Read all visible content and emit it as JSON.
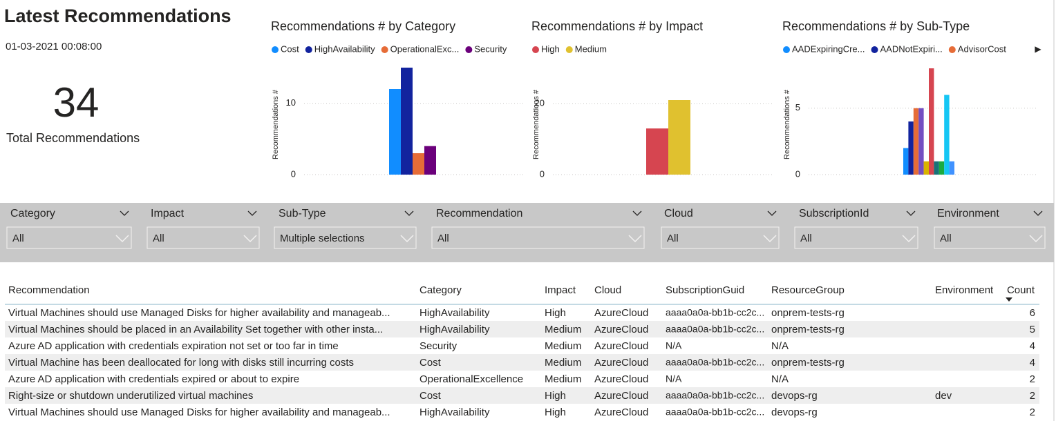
{
  "header": {
    "title": "Latest Recommendations",
    "date": "01-03-2021 00:08:00"
  },
  "card": {
    "value": 34,
    "label": "Total Recommendations"
  },
  "chart_data": [
    {
      "type": "bar",
      "title": "Recommendations # by Category",
      "y_label": "Recommendations #",
      "categories": [
        null
      ],
      "ylim": [
        0,
        15
      ],
      "yticks": [
        0,
        10
      ],
      "grid": true,
      "series": [
        {
          "name": "Cost",
          "color": "#118dff",
          "values": [
            12
          ]
        },
        {
          "name": "HighAvailability",
          "color": "#12239e",
          "values": [
            15
          ]
        },
        {
          "name": "OperationalExc...",
          "color": "#e66c37",
          "values": [
            3
          ]
        },
        {
          "name": "Security",
          "color": "#6b007b",
          "values": [
            4
          ]
        }
      ]
    },
    {
      "type": "bar",
      "title": "Recommendations # by Impact",
      "y_label": "Recommendations #",
      "categories": [
        null
      ],
      "ylim": [
        0,
        21
      ],
      "yticks": [
        0,
        20
      ],
      "grid": true,
      "series": [
        {
          "name": "High",
          "color": "#d64550",
          "values": [
            13
          ]
        },
        {
          "name": "Medium",
          "color": "#e0c12f",
          "values": [
            21
          ]
        }
      ]
    },
    {
      "type": "bar",
      "title": "Recommendations # by Sub-Type",
      "y_label": "Recommendations #",
      "categories": [
        null
      ],
      "ylim": [
        0,
        8
      ],
      "yticks": [
        0,
        5
      ],
      "grid": true,
      "series": [
        {
          "name": "AADExpiringCre...",
          "color": "#118dff",
          "values": [
            2
          ]
        },
        {
          "name": "AADNotExpiri...",
          "color": "#12239e",
          "values": [
            4
          ]
        },
        {
          "name": "AdvisorCost",
          "color": "#e66c37",
          "values": [
            5
          ]
        },
        {
          "color": "#744ec2",
          "values": [
            5
          ]
        },
        {
          "color": "#d9b300",
          "values": [
            1
          ]
        },
        {
          "color": "#d64550",
          "values": [
            8
          ]
        },
        {
          "color": "#197278",
          "values": [
            1
          ]
        },
        {
          "color": "#1aab40",
          "values": [
            1
          ]
        },
        {
          "color": "#15c6f4",
          "values": [
            6
          ]
        },
        {
          "color": "#4092ff",
          "values": [
            1
          ]
        }
      ]
    }
  ],
  "slicers": [
    {
      "title": "Category",
      "value": "All"
    },
    {
      "title": "Impact",
      "value": "All"
    },
    {
      "title": "Sub-Type",
      "value": "Multiple selections"
    },
    {
      "title": "Recommendation",
      "value": "All"
    },
    {
      "title": "Cloud",
      "value": "All"
    },
    {
      "title": "SubscriptionId",
      "value": "All"
    },
    {
      "title": "Environment",
      "value": "All"
    }
  ],
  "table": {
    "columns": [
      "Recommendation",
      "Category",
      "Impact",
      "Cloud",
      "SubscriptionGuid",
      "ResourceGroup",
      "Environment",
      "Count"
    ],
    "rows": [
      [
        "Virtual Machines should use Managed Disks for higher availability and manageab...",
        "HighAvailability",
        "High",
        "AzureCloud",
        "aaaa0a0a-bb1b-cc2c...",
        "onprem-tests-rg",
        null,
        6
      ],
      [
        "Virtual Machines should be placed in an Availability Set together with other insta...",
        "HighAvailability",
        "Medium",
        "AzureCloud",
        "aaaa0a0a-bb1b-cc2c...",
        "onprem-tests-rg",
        null,
        5
      ],
      [
        "Azure AD application with credentials expiration not set or too far in time",
        "Security",
        "Medium",
        "AzureCloud",
        "N/A",
        "N/A",
        null,
        4
      ],
      [
        "Virtual Machine has been deallocated for long with disks still incurring costs",
        "Cost",
        "Medium",
        "AzureCloud",
        "aaaa0a0a-bb1b-cc2c...",
        "onprem-tests-rg",
        null,
        4
      ],
      [
        "Azure AD application with credentials expired or about to expire",
        "OperationalExcellence",
        "Medium",
        "AzureCloud",
        "N/A",
        "N/A",
        null,
        2
      ],
      [
        "Right-size or shutdown underutilized virtual machines",
        "Cost",
        "High",
        "AzureCloud",
        "aaaa0a0a-bb1b-cc2c...",
        "devops-rg",
        "dev",
        2
      ],
      [
        "Virtual Machines should use Managed Disks for higher availability and manageab...",
        "HighAvailability",
        "High",
        "AzureCloud",
        "aaaa0a0a-bb1b-cc2c...",
        "devops-rg",
        null,
        2
      ]
    ]
  }
}
